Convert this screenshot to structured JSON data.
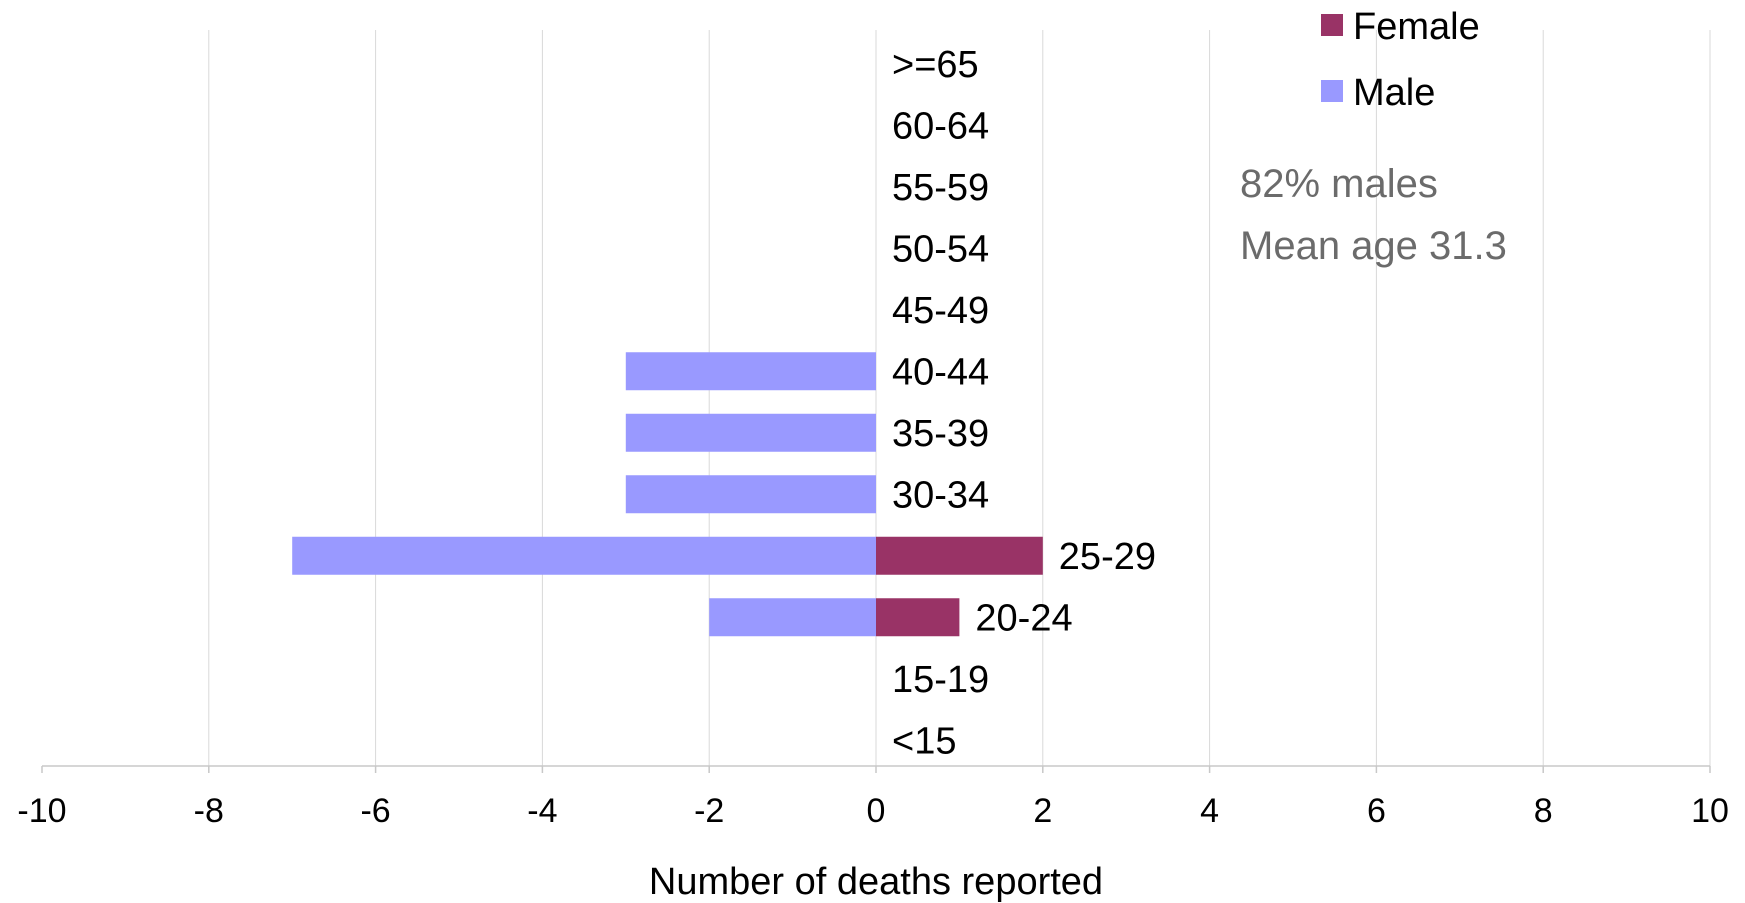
{
  "chart_data": {
    "type": "bar",
    "orientation": "horizontal",
    "categories": [
      ">=65",
      "60-64",
      "55-59",
      "50-54",
      "45-49",
      "40-44",
      "35-39",
      "30-34",
      "25-29",
      "20-24",
      "15-19",
      "<15"
    ],
    "series": [
      {
        "name": "Female",
        "color": "#993366",
        "values": [
          0,
          0,
          0,
          0,
          0,
          0,
          0,
          0,
          2,
          1,
          0,
          0
        ]
      },
      {
        "name": "Male",
        "color": "#9999FF",
        "values": [
          0,
          0,
          0,
          0,
          0,
          -3,
          -3,
          -3,
          -7,
          -2,
          0,
          0
        ]
      }
    ],
    "xlim": [
      -10,
      10
    ],
    "xticks": [
      -10,
      -8,
      -6,
      -4,
      -2,
      0,
      2,
      4,
      6,
      8,
      10
    ],
    "xlabel": "Number of deaths reported",
    "grid": "vertical",
    "legend_position": "top-right",
    "annotations": [
      "82% males",
      "Mean age 31.3"
    ]
  }
}
